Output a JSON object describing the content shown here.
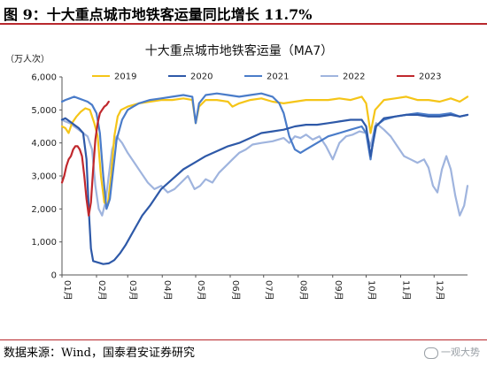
{
  "figure": {
    "title": "图 9：十大重点城市地铁客运量同比增长 11.7%",
    "source": "数据来源：Wind，国泰君安证券研究",
    "watermark": "一观大势"
  },
  "colors": {
    "2019": "#f5c518",
    "2020": "#2e59a8",
    "2021": "#4a7cc9",
    "2022": "#9fb4de",
    "2023": "#c0282d",
    "accent_rule": "#b8282d"
  },
  "chart_data": {
    "type": "line",
    "title": "十大重点城市地铁客运量（MA7）",
    "unit_label": "（万人次）",
    "ylim": [
      0,
      6000
    ],
    "yticks": [
      0,
      1000,
      2000,
      3000,
      4000,
      5000,
      6000
    ],
    "ytick_labels": [
      "0",
      "1,000",
      "2,000",
      "3,000",
      "4,000",
      "5,000",
      "6,000"
    ],
    "xlim": [
      1,
      365
    ],
    "xtick_days": [
      1,
      32,
      60,
      91,
      121,
      152,
      182,
      213,
      244,
      274,
      305,
      335
    ],
    "xtick_labels": [
      "01月",
      "02月",
      "03月",
      "04月",
      "05月",
      "06月",
      "07月",
      "08月",
      "09月",
      "10月",
      "11月",
      "12月"
    ],
    "legend_position": "top",
    "x_unit": "day of year",
    "series": [
      {
        "name": "2019",
        "points": [
          [
            1,
            4500
          ],
          [
            4,
            4450
          ],
          [
            7,
            4300
          ],
          [
            10,
            4600
          ],
          [
            14,
            4800
          ],
          [
            18,
            4950
          ],
          [
            22,
            5050
          ],
          [
            26,
            5000
          ],
          [
            30,
            4600
          ],
          [
            33,
            4200
          ],
          [
            36,
            3000
          ],
          [
            39,
            2200
          ],
          [
            42,
            2100
          ],
          [
            45,
            3000
          ],
          [
            48,
            4200
          ],
          [
            51,
            4800
          ],
          [
            54,
            5000
          ],
          [
            60,
            5100
          ],
          [
            70,
            5200
          ],
          [
            80,
            5250
          ],
          [
            90,
            5300
          ],
          [
            100,
            5300
          ],
          [
            110,
            5350
          ],
          [
            118,
            5300
          ],
          [
            121,
            4600
          ],
          [
            124,
            5100
          ],
          [
            130,
            5300
          ],
          [
            140,
            5300
          ],
          [
            150,
            5250
          ],
          [
            154,
            5100
          ],
          [
            160,
            5200
          ],
          [
            170,
            5300
          ],
          [
            180,
            5350
          ],
          [
            190,
            5250
          ],
          [
            200,
            5200
          ],
          [
            210,
            5250
          ],
          [
            220,
            5300
          ],
          [
            230,
            5300
          ],
          [
            240,
            5300
          ],
          [
            250,
            5350
          ],
          [
            260,
            5300
          ],
          [
            270,
            5400
          ],
          [
            274,
            5200
          ],
          [
            278,
            4300
          ],
          [
            282,
            5000
          ],
          [
            290,
            5300
          ],
          [
            300,
            5350
          ],
          [
            310,
            5400
          ],
          [
            320,
            5300
          ],
          [
            330,
            5300
          ],
          [
            340,
            5250
          ],
          [
            350,
            5350
          ],
          [
            358,
            5250
          ],
          [
            365,
            5400
          ]
        ]
      },
      {
        "name": "2020",
        "points": [
          [
            1,
            4700
          ],
          [
            4,
            4750
          ],
          [
            8,
            4650
          ],
          [
            12,
            4550
          ],
          [
            16,
            4450
          ],
          [
            20,
            4300
          ],
          [
            23,
            3500
          ],
          [
            25,
            2000
          ],
          [
            27,
            800
          ],
          [
            29,
            420
          ],
          [
            33,
            380
          ],
          [
            38,
            330
          ],
          [
            43,
            350
          ],
          [
            48,
            450
          ],
          [
            53,
            650
          ],
          [
            58,
            900
          ],
          [
            63,
            1200
          ],
          [
            68,
            1500
          ],
          [
            73,
            1800
          ],
          [
            80,
            2100
          ],
          [
            90,
            2600
          ],
          [
            100,
            2900
          ],
          [
            110,
            3200
          ],
          [
            120,
            3400
          ],
          [
            130,
            3600
          ],
          [
            140,
            3750
          ],
          [
            150,
            3900
          ],
          [
            160,
            4000
          ],
          [
            170,
            4150
          ],
          [
            180,
            4300
          ],
          [
            190,
            4350
          ],
          [
            200,
            4400
          ],
          [
            210,
            4500
          ],
          [
            220,
            4550
          ],
          [
            230,
            4550
          ],
          [
            240,
            4600
          ],
          [
            250,
            4650
          ],
          [
            260,
            4700
          ],
          [
            270,
            4700
          ],
          [
            274,
            4500
          ],
          [
            278,
            3600
          ],
          [
            283,
            4500
          ],
          [
            290,
            4750
          ],
          [
            300,
            4800
          ],
          [
            310,
            4850
          ],
          [
            320,
            4850
          ],
          [
            330,
            4800
          ],
          [
            340,
            4800
          ],
          [
            350,
            4850
          ],
          [
            358,
            4800
          ],
          [
            365,
            4850
          ]
        ]
      },
      {
        "name": "2021",
        "points": [
          [
            1,
            5250
          ],
          [
            4,
            5300
          ],
          [
            8,
            5350
          ],
          [
            12,
            5400
          ],
          [
            16,
            5350
          ],
          [
            20,
            5300
          ],
          [
            24,
            5250
          ],
          [
            28,
            5150
          ],
          [
            32,
            4900
          ],
          [
            35,
            4300
          ],
          [
            38,
            3000
          ],
          [
            41,
            2000
          ],
          [
            44,
            2300
          ],
          [
            47,
            3200
          ],
          [
            50,
            4100
          ],
          [
            55,
            4700
          ],
          [
            60,
            5000
          ],
          [
            65,
            5100
          ],
          [
            70,
            5200
          ],
          [
            80,
            5300
          ],
          [
            90,
            5350
          ],
          [
            100,
            5400
          ],
          [
            110,
            5450
          ],
          [
            118,
            5400
          ],
          [
            121,
            4600
          ],
          [
            124,
            5200
          ],
          [
            130,
            5450
          ],
          [
            140,
            5500
          ],
          [
            150,
            5450
          ],
          [
            160,
            5400
          ],
          [
            170,
            5450
          ],
          [
            180,
            5500
          ],
          [
            190,
            5400
          ],
          [
            196,
            5200
          ],
          [
            200,
            4900
          ],
          [
            205,
            4200
          ],
          [
            210,
            3800
          ],
          [
            215,
            3700
          ],
          [
            220,
            3800
          ],
          [
            230,
            4000
          ],
          [
            240,
            4200
          ],
          [
            250,
            4300
          ],
          [
            260,
            4400
          ],
          [
            270,
            4500
          ],
          [
            274,
            4300
          ],
          [
            278,
            3500
          ],
          [
            282,
            4500
          ],
          [
            290,
            4700
          ],
          [
            300,
            4800
          ],
          [
            310,
            4850
          ],
          [
            320,
            4900
          ],
          [
            330,
            4850
          ],
          [
            340,
            4850
          ],
          [
            350,
            4900
          ],
          [
            358,
            4800
          ],
          [
            365,
            4850
          ]
        ]
      },
      {
        "name": "2022",
        "points": [
          [
            1,
            4700
          ],
          [
            4,
            4650
          ],
          [
            8,
            4600
          ],
          [
            12,
            4500
          ],
          [
            16,
            4400
          ],
          [
            20,
            4300
          ],
          [
            24,
            4200
          ],
          [
            28,
            3800
          ],
          [
            31,
            2700
          ],
          [
            34,
            2000
          ],
          [
            37,
            1800
          ],
          [
            40,
            2200
          ],
          [
            43,
            3000
          ],
          [
            46,
            3800
          ],
          [
            50,
            4200
          ],
          [
            55,
            4000
          ],
          [
            60,
            3700
          ],
          [
            66,
            3400
          ],
          [
            72,
            3100
          ],
          [
            78,
            2800
          ],
          [
            84,
            2600
          ],
          [
            90,
            2700
          ],
          [
            96,
            2500
          ],
          [
            102,
            2600
          ],
          [
            108,
            2800
          ],
          [
            114,
            3000
          ],
          [
            120,
            2600
          ],
          [
            125,
            2700
          ],
          [
            130,
            2900
          ],
          [
            136,
            2800
          ],
          [
            142,
            3100
          ],
          [
            148,
            3300
          ],
          [
            154,
            3500
          ],
          [
            160,
            3700
          ],
          [
            166,
            3800
          ],
          [
            172,
            3950
          ],
          [
            180,
            4000
          ],
          [
            190,
            4050
          ],
          [
            200,
            4150
          ],
          [
            205,
            4000
          ],
          [
            210,
            4200
          ],
          [
            215,
            4150
          ],
          [
            220,
            4250
          ],
          [
            226,
            4100
          ],
          [
            232,
            4200
          ],
          [
            238,
            3900
          ],
          [
            244,
            3500
          ],
          [
            250,
            4000
          ],
          [
            256,
            4200
          ],
          [
            262,
            4250
          ],
          [
            268,
            4350
          ],
          [
            274,
            4300
          ],
          [
            278,
            3900
          ],
          [
            283,
            4600
          ],
          [
            290,
            4400
          ],
          [
            296,
            4200
          ],
          [
            302,
            3900
          ],
          [
            308,
            3600
          ],
          [
            314,
            3500
          ],
          [
            320,
            3400
          ],
          [
            326,
            3500
          ],
          [
            330,
            3250
          ],
          [
            334,
            2700
          ],
          [
            338,
            2500
          ],
          [
            342,
            3200
          ],
          [
            346,
            3600
          ],
          [
            350,
            3200
          ],
          [
            354,
            2400
          ],
          [
            358,
            1800
          ],
          [
            362,
            2100
          ],
          [
            365,
            2700
          ]
        ]
      },
      {
        "name": "2023",
        "points": [
          [
            1,
            2800
          ],
          [
            3,
            3000
          ],
          [
            5,
            3300
          ],
          [
            7,
            3500
          ],
          [
            9,
            3600
          ],
          [
            11,
            3800
          ],
          [
            13,
            3900
          ],
          [
            15,
            3900
          ],
          [
            17,
            3800
          ],
          [
            19,
            3600
          ],
          [
            21,
            3000
          ],
          [
            23,
            2300
          ],
          [
            25,
            1800
          ],
          [
            27,
            2200
          ],
          [
            29,
            3200
          ],
          [
            31,
            4100
          ],
          [
            33,
            4600
          ],
          [
            35,
            4900
          ],
          [
            37,
            5000
          ],
          [
            39,
            5100
          ],
          [
            41,
            5150
          ],
          [
            43,
            5250
          ]
        ]
      }
    ]
  }
}
